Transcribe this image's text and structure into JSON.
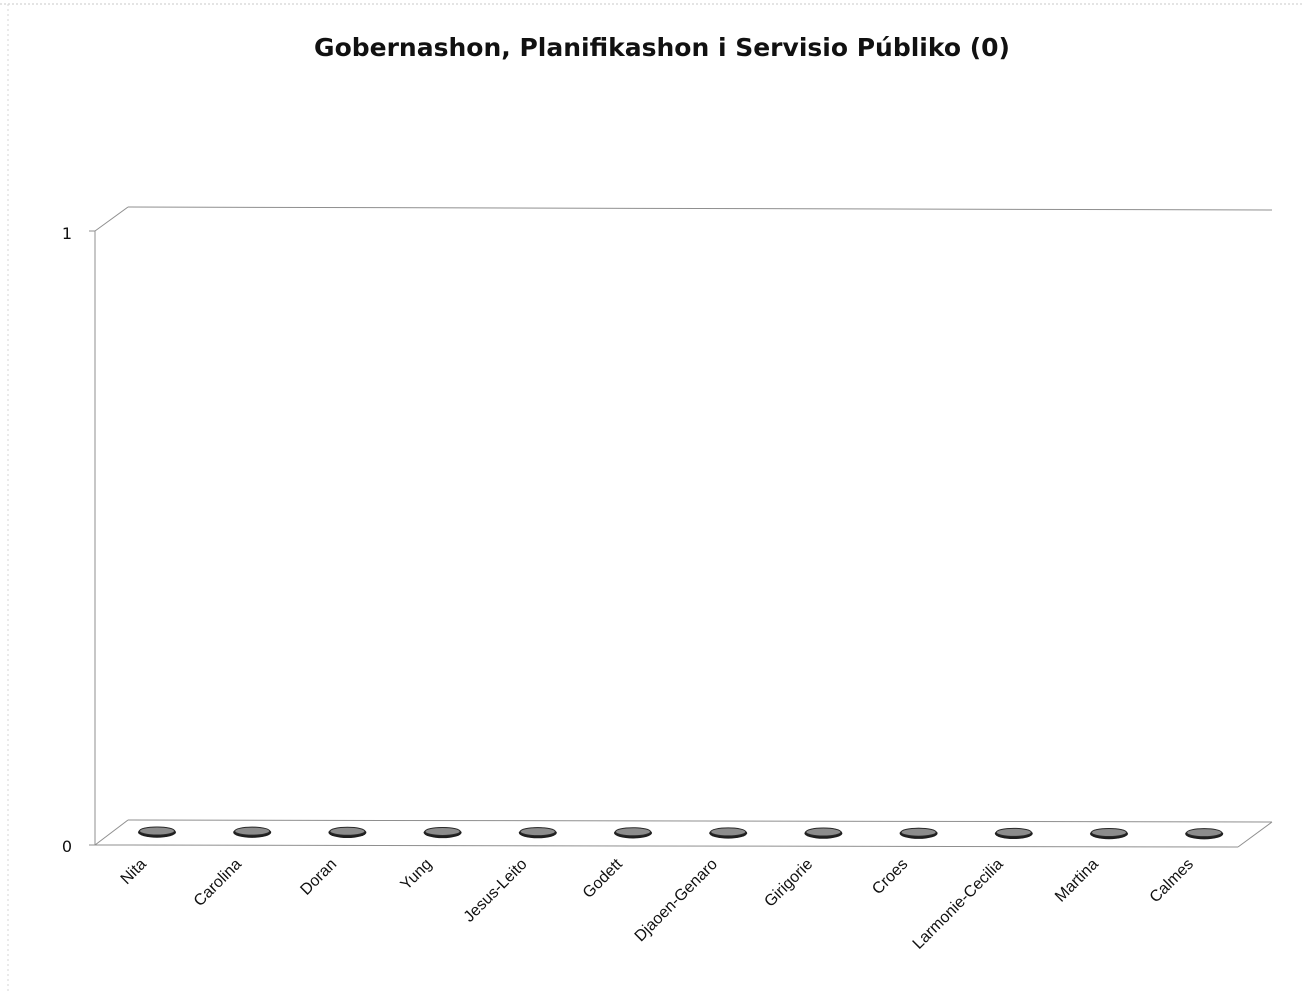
{
  "chart_data": {
    "type": "bar",
    "title": "Gobernashon, Planifikashon i Servisio Públiko  (0)",
    "categories": [
      "Nita",
      "Carolina",
      "Doran",
      "Yung",
      "Jesus-Leito",
      "Godett",
      "Djaoen-Genaro",
      "Girigorie",
      "Croes",
      "Larmonie-Cecilia",
      "Martina",
      "Calmes"
    ],
    "values": [
      0,
      0,
      0,
      0,
      0,
      0,
      0,
      0,
      0,
      0,
      0,
      0
    ],
    "ylim": [
      0,
      1
    ],
    "yticks": [
      "0",
      "1"
    ],
    "xlabel": "",
    "ylabel": "",
    "grid": false,
    "legend": "none",
    "style": "3d-cylinder",
    "bar_color": "#8c8c8c",
    "axis_color": "#9a9a9a"
  }
}
